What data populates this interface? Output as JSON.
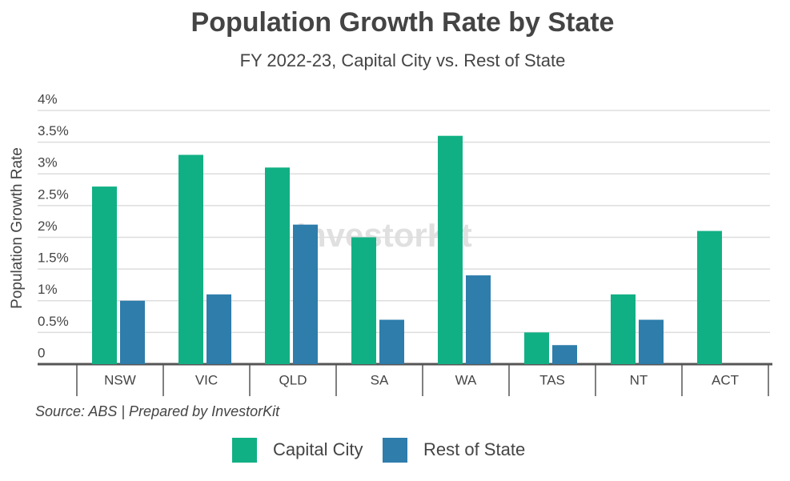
{
  "chart_data": {
    "type": "bar",
    "title": "Population Growth Rate by State",
    "subtitle": "FY 2022-23, Capital City vs. Rest of State",
    "y_label": "Population Growth Rate",
    "source": "Source: ABS | Prepared by InvestorKit",
    "watermark": "InvestorKit",
    "categories": [
      "NSW",
      "VIC",
      "QLD",
      "SA",
      "WA",
      "TAS",
      "NT",
      "ACT"
    ],
    "series": [
      {
        "name": "Capital City",
        "color": "#11b084",
        "values": [
          2.8,
          3.3,
          3.1,
          2.0,
          3.6,
          0.5,
          1.1,
          2.1
        ]
      },
      {
        "name": "Rest of State",
        "color": "#2e7dab",
        "values": [
          1.0,
          1.1,
          2.2,
          0.7,
          1.4,
          0.3,
          0.7,
          null
        ]
      }
    ],
    "ylim": [
      0,
      4
    ],
    "yticks": [
      0,
      {
        "value": 0.5,
        "label": "0.5%"
      },
      {
        "value": 1,
        "label": "1%"
      },
      {
        "value": 1.5,
        "label": "1.5%"
      },
      {
        "value": 2,
        "label": "2%"
      },
      {
        "value": 2.5,
        "label": "2.5%"
      },
      {
        "value": 3,
        "label": "3%"
      },
      {
        "value": 3.5,
        "label": "3.5%"
      },
      {
        "value": 4,
        "label": "4%"
      }
    ],
    "grid": true,
    "legend": "bottom"
  }
}
